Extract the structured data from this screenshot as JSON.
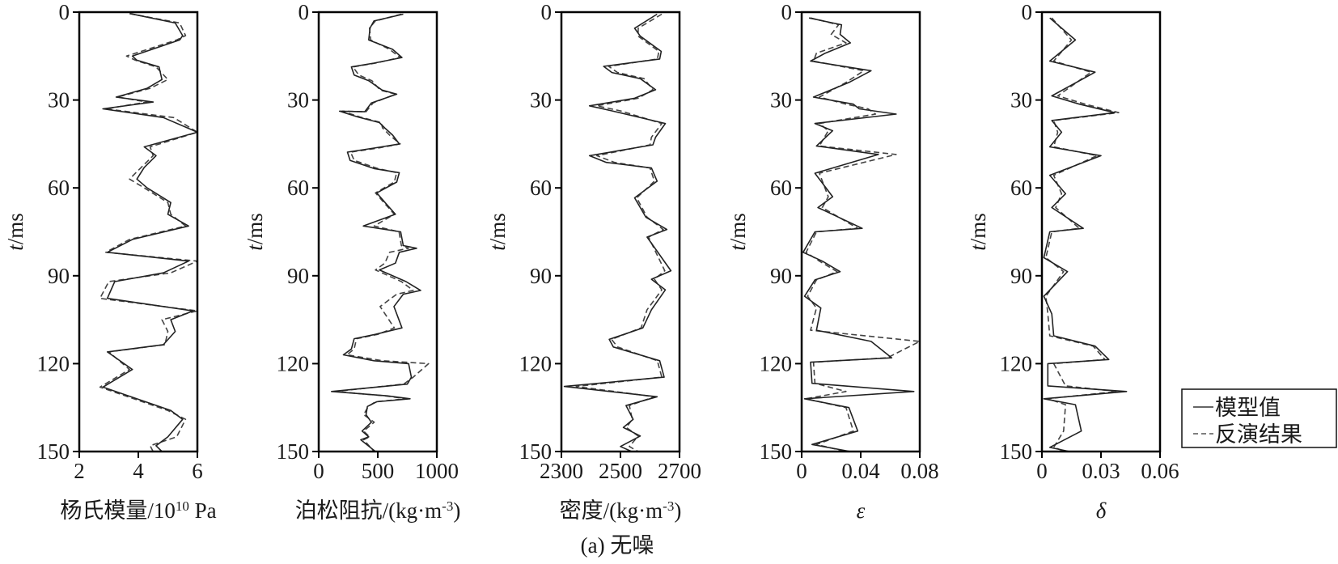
{
  "chart_data": {
    "type": "line",
    "caption": "(a) 无噪",
    "ylabel_italic": "t",
    "ylabel_rest": "/ms",
    "ylim": [
      0,
      150
    ],
    "yticks": [
      "0",
      "30",
      "60",
      "90",
      "120",
      "150"
    ],
    "yticks_values": [
      0,
      30,
      60,
      90,
      120,
      150
    ],
    "legend": {
      "placement": "bottom-right",
      "entries": [
        {
          "name": "模型值",
          "style": "solid"
        },
        {
          "name": "反演结果",
          "style": "dashed"
        }
      ]
    },
    "panels": [
      {
        "xlabel": "杨氏模量/10",
        "xlabel_sup": "10",
        "xlabel_tail": " Pa",
        "italic": false,
        "xlim": [
          2,
          6
        ],
        "xticks": [
          "2",
          "4",
          "6"
        ],
        "xticks_values": [
          2,
          4,
          6
        ],
        "model": {
          "t": [
            0.5,
            3.7,
            8,
            9.5,
            15,
            16.4,
            18.7,
            23,
            26,
            29,
            30.7,
            33,
            36,
            41,
            46,
            49,
            53,
            57,
            60,
            65,
            69,
            73,
            77.6,
            82,
            85,
            89,
            92,
            97.7,
            102,
            105,
            109,
            113.5,
            116,
            122,
            128,
            136,
            139,
            145,
            148,
            150
          ],
          "v": [
            3.72,
            5.25,
            5.5,
            5.4,
            3.8,
            3.95,
            4.7,
            4.8,
            4.3,
            3.25,
            4.5,
            2.8,
            4.85,
            6,
            4.2,
            4.6,
            4.2,
            3.95,
            4.3,
            5.1,
            5,
            5.7,
            3.8,
            2.95,
            5.7,
            4.85,
            3.2,
            2.95,
            5.85,
            5.1,
            5.25,
            4.85,
            2.95,
            3.8,
            2.8,
            5.1,
            5.5,
            5,
            4.6,
            4.8
          ]
        },
        "inverted": {
          "t": [
            0.5,
            3.7,
            8,
            9.5,
            15,
            16.4,
            18.7,
            23,
            26,
            29,
            30.7,
            33,
            36,
            41,
            46,
            49,
            53,
            57,
            60,
            65,
            69,
            73,
            77.6,
            82,
            85,
            89,
            92,
            97.7,
            102,
            105,
            109,
            113.5,
            116,
            122,
            128,
            136,
            139,
            145,
            148,
            150
          ],
          "v": [
            3.7,
            5.4,
            5.6,
            5.3,
            3.6,
            3.9,
            4.6,
            5.0,
            4.4,
            3.3,
            4.3,
            2.9,
            5.2,
            6.0,
            4.4,
            4.5,
            4.1,
            3.7,
            4.2,
            5.0,
            5.1,
            5.6,
            3.7,
            2.9,
            6.0,
            5.1,
            3.0,
            2.7,
            6.0,
            4.8,
            5.0,
            4.9,
            3.0,
            3.7,
            2.7,
            5.0,
            5.6,
            5.3,
            4.4,
            4.5
          ]
        }
      },
      {
        "xlabel": "泊松阻抗/(kg·m",
        "xlabel_sup": "-3",
        "xlabel_tail": ")",
        "italic": false,
        "xlim": [
          0,
          1000
        ],
        "xticks": [
          "0",
          "500",
          "1000"
        ],
        "xticks_values": [
          0,
          500,
          1000
        ],
        "model": {
          "t": [
            0.7,
            3,
            5.4,
            9.5,
            12.7,
            15.5,
            17.4,
            18.7,
            21.5,
            23.4,
            26.6,
            28,
            31,
            34,
            33.8,
            35.8,
            37.7,
            39.5,
            42,
            45,
            46.4,
            47.8,
            50.6,
            53.4,
            54.8,
            58,
            61.7,
            65.4,
            69,
            73,
            75,
            79.7,
            80.6,
            82,
            85.7,
            88,
            92,
            95,
            96.3,
            100.5,
            107.8,
            110,
            111.5,
            115,
            117,
            119,
            120,
            124.6,
            127,
            129.5,
            131,
            132,
            133,
            134.6,
            137.4,
            140,
            143,
            145,
            146,
            150
          ],
          "v": [
            716,
            468,
            435,
            423,
            626,
            705,
            468,
            277,
            300,
            423,
            536,
            660,
            446,
            390,
            176,
            333,
            514,
            558,
            626,
            682,
            468,
            243,
            266,
            468,
            682,
            660,
            491,
            570,
            649,
            378,
            694,
            716,
            829,
            682,
            649,
            514,
            739,
            863,
            716,
            637,
            705,
            480,
            300,
            277,
            209,
            468,
            761,
            784,
            750,
            108,
            581,
            773,
            491,
            412,
            401,
            446,
            367,
            423,
            356,
            480
          ]
        },
        "inverted": {
          "t": [
            0.7,
            3,
            5.4,
            9.5,
            12.7,
            15.5,
            17.4,
            18.7,
            21.5,
            23.4,
            26.6,
            28,
            31,
            34,
            33.8,
            35.8,
            37.7,
            39.5,
            42,
            45,
            46.4,
            47.8,
            50.6,
            53.4,
            54.8,
            58,
            61.7,
            65.4,
            69,
            73,
            75,
            79.7,
            80.6,
            82,
            85.7,
            88,
            92,
            95,
            96.3,
            100.5,
            107.8,
            110,
            111.5,
            115,
            117,
            119,
            120,
            124.6,
            127,
            129.5,
            131,
            132,
            133,
            134.6,
            137.4,
            140,
            143,
            145,
            146,
            150
          ],
          "v": [
            700,
            480,
            430,
            440,
            600,
            690,
            480,
            290,
            340,
            450,
            520,
            650,
            460,
            400,
            200,
            350,
            530,
            540,
            600,
            690,
            500,
            270,
            300,
            500,
            660,
            640,
            480,
            560,
            640,
            470,
            680,
            700,
            760,
            600,
            560,
            480,
            700,
            800,
            660,
            520,
            640,
            500,
            320,
            300,
            240,
            540,
            930,
            800,
            720,
            140,
            560,
            740,
            480,
            420,
            380,
            470,
            380,
            430,
            380,
            470
          ]
        }
      },
      {
        "xlabel": "密度/(kg·m",
        "xlabel_sup": "-3",
        "xlabel_tail": ")",
        "italic": false,
        "xlim": [
          2300,
          2700
        ],
        "xticks": [
          "2300",
          "2500",
          "2700"
        ],
        "xticks_values": [
          2300,
          2500,
          2700
        ],
        "model": {
          "t": [
            0.7,
            5.5,
            8.2,
            13.4,
            16,
            18.5,
            20.6,
            22.7,
            26.5,
            29.4,
            32,
            33.7,
            38,
            42.7,
            45.3,
            49,
            51.3,
            53.2,
            57.7,
            63.4,
            70,
            74.2,
            76.8,
            88.3,
            91.2,
            94.8,
            101.6,
            107.8,
            111.7,
            114.3,
            119,
            124.6,
            127.8,
            131.3,
            134.3,
            139,
            141.8,
            144.7,
            148.3,
            150
          ],
          "v": [
            2624,
            2548,
            2567,
            2638,
            2633,
            2443,
            2471,
            2567,
            2619,
            2548,
            2395,
            2471,
            2652,
            2619,
            2610,
            2395,
            2452,
            2605,
            2624,
            2548,
            2586,
            2657,
            2590,
            2671,
            2605,
            2652,
            2605,
            2576,
            2462,
            2476,
            2633,
            2648,
            2310,
            2624,
            2519,
            2543,
            2510,
            2567,
            2500,
            2538
          ]
        },
        "inverted": {
          "t": [
            0.7,
            5.5,
            8.2,
            13.4,
            16,
            18.5,
            20.6,
            22.7,
            26.5,
            29.4,
            32,
            33.7,
            38,
            42.7,
            45.3,
            49,
            51.3,
            53.2,
            57.7,
            63.4,
            70,
            74.2,
            76.8,
            88.3,
            91.2,
            94.8,
            101.6,
            107.8,
            111.7,
            114.3,
            119,
            124.6,
            127.8,
            131.3,
            134.3,
            139,
            141.8,
            144.7,
            148.3,
            150
          ],
          "v": [
            2640,
            2560,
            2560,
            2630,
            2625,
            2460,
            2490,
            2580,
            2610,
            2560,
            2420,
            2500,
            2640,
            2605,
            2600,
            2420,
            2480,
            2600,
            2615,
            2555,
            2590,
            2645,
            2595,
            2650,
            2615,
            2640,
            2590,
            2570,
            2470,
            2490,
            2625,
            2640,
            2350,
            2615,
            2530,
            2540,
            2520,
            2560,
            2530,
            2560
          ]
        }
      },
      {
        "xlabel": "ε",
        "xlabel_sup": "",
        "xlabel_tail": "",
        "italic": true,
        "xlim": [
          0,
          0.08
        ],
        "xticks": [
          "0",
          "0.04",
          "0.08"
        ],
        "xticks_values": [
          0,
          0.04,
          0.08
        ],
        "model": {
          "t": [
            2,
            4.3,
            7.6,
            10.5,
            14,
            16.7,
            20,
            24,
            29,
            31.4,
            33,
            34.8,
            38,
            40.5,
            45.7,
            48.6,
            55,
            63,
            66.7,
            73.8,
            75,
            82,
            85,
            88.6,
            91.4,
            97,
            101,
            108.6,
            112.4,
            118,
            119.5,
            126.7,
            129.5,
            132,
            135,
            143,
            147.6,
            150
          ],
          "v": [
            0.005,
            0.027,
            0.026,
            0.033,
            0.016,
            0.006,
            0.047,
            0.032,
            0.008,
            0.035,
            0.039,
            0.064,
            0.009,
            0.021,
            0.01,
            0.052,
            0.009,
            0.021,
            0.011,
            0.041,
            0.009,
            0.001,
            0.014,
            0.026,
            0.009,
            0.002,
            0.013,
            0.01,
            0.047,
            0.061,
            0.006,
            0.007,
            0.076,
            0.002,
            0.032,
            0.038,
            0.007,
            0.033
          ]
        },
        "inverted": {
          "t": [
            2,
            4.3,
            7.6,
            10.5,
            14,
            16.7,
            20,
            24,
            29,
            31.4,
            33,
            34.8,
            38,
            40.5,
            45.7,
            48.6,
            55,
            63,
            66.7,
            73.8,
            75,
            82,
            85,
            88.6,
            91.4,
            97,
            101,
            108.6,
            112.4,
            118,
            119.5,
            126.7,
            129.5,
            132,
            135,
            143,
            147.6,
            150
          ],
          "v": [
            0.006,
            0.025,
            0.02,
            0.03,
            0.01,
            0.008,
            0.042,
            0.03,
            0.012,
            0.03,
            0.045,
            0.05,
            0.012,
            0.018,
            0.012,
            0.064,
            0.012,
            0.018,
            0.014,
            0.038,
            0.01,
            0.003,
            0.012,
            0.024,
            0.01,
            0.004,
            0.01,
            0.006,
            0.08,
            0.058,
            0.008,
            0.009,
            0.03,
            0.003,
            0.03,
            0.035,
            0.01,
            0.03
          ]
        }
      },
      {
        "xlabel": "δ",
        "xlabel_sup": "",
        "xlabel_tail": "",
        "italic": true,
        "xlim": [
          0,
          0.06
        ],
        "xticks": [
          "0",
          "0.03",
          "0.06"
        ],
        "xticks_values": [
          0,
          0.03,
          0.06
        ],
        "model": {
          "t": [
            2,
            9.5,
            16.7,
            20.5,
            28.6,
            31.4,
            34.3,
            37,
            41,
            46,
            49,
            55.7,
            62,
            66.7,
            73.8,
            75,
            83.8,
            88.6,
            97,
            103,
            110.5,
            114,
            118.6,
            120,
            127.6,
            129.5,
            132,
            134,
            143,
            148.6,
            150
          ],
          "v": [
            0.004,
            0.017,
            0.004,
            0.027,
            0.005,
            0.019,
            0.037,
            0.005,
            0.01,
            0.004,
            0.03,
            0.004,
            0.012,
            0.005,
            0.021,
            0.004,
            0.001,
            0.013,
            0.001,
            0.005,
            0.006,
            0.027,
            0.034,
            0.003,
            0.003,
            0.043,
            0.001,
            0.017,
            0.02,
            0.004,
            0.014
          ]
        },
        "inverted": {
          "t": [
            2,
            9.5,
            16.7,
            20.5,
            28.6,
            31.4,
            34.3,
            37,
            41,
            46,
            49,
            55.7,
            62,
            66.7,
            73.8,
            75,
            83.8,
            88.6,
            97,
            103,
            110.5,
            114,
            118.6,
            120,
            127.6,
            129.5,
            132,
            134,
            143,
            148.6,
            150
          ],
          "v": [
            0.005,
            0.015,
            0.006,
            0.025,
            0.008,
            0.022,
            0.039,
            0.006,
            0.008,
            0.006,
            0.028,
            0.006,
            0.01,
            0.007,
            0.019,
            0.005,
            0.002,
            0.011,
            0.002,
            0.003,
            0.004,
            0.026,
            0.032,
            0.006,
            0.012,
            0.038,
            0.003,
            0.012,
            0.011,
            0.006,
            0.012
          ]
        }
      }
    ]
  }
}
